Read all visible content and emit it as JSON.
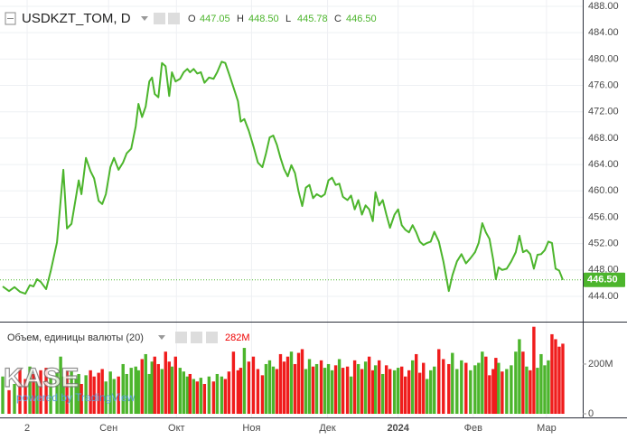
{
  "chart_data": {
    "type": "line",
    "symbol": "USDKZT_TOM, D",
    "ohlc": [
      {
        "label": "O",
        "value": "447.05"
      },
      {
        "label": "H",
        "value": "448.50"
      },
      {
        "label": "L",
        "value": "445.78"
      },
      {
        "label": "C",
        "value": "446.50"
      }
    ],
    "last_price_label": "446.50",
    "volume_title": "Объем, единицы валюты (20)",
    "volume_last_label": "282M",
    "watermark": [
      "KASE",
      "powered by TradingView"
    ],
    "x": [
      3,
      10,
      16,
      22,
      28,
      33,
      37,
      41,
      45,
      51,
      56,
      63,
      67,
      70,
      74,
      79,
      84,
      87,
      90,
      95,
      100,
      104,
      109,
      113,
      117,
      122,
      126,
      131,
      136,
      140,
      145,
      150,
      153,
      157,
      161,
      165,
      168,
      171,
      175,
      179,
      183,
      187,
      190,
      194,
      199,
      203,
      207,
      210,
      214,
      218,
      222,
      226,
      231,
      236,
      240,
      245,
      249,
      253,
      258,
      263,
      266,
      270,
      275,
      280,
      285,
      290,
      294,
      298,
      302,
      306,
      310,
      314,
      318,
      322,
      326,
      330,
      334,
      338,
      342,
      346,
      350,
      355,
      359,
      363,
      367,
      371,
      375,
      379,
      384,
      388,
      392,
      396,
      400,
      404,
      408,
      412,
      415,
      419,
      423,
      427,
      431,
      436,
      440,
      444,
      448,
      452,
      456,
      460,
      464,
      468,
      472,
      476,
      480,
      485,
      490,
      496,
      500,
      505,
      510,
      515,
      520,
      525,
      529,
      533,
      537,
      541,
      545,
      548,
      551,
      555,
      560,
      565,
      570,
      574,
      578,
      582,
      586,
      590,
      594,
      598,
      602,
      606,
      610,
      614,
      618,
      622
    ],
    "xlim": [
      0,
      644
    ],
    "xticks": [
      {
        "value": 30,
        "label": "2"
      },
      {
        "value": 120,
        "label": "Сен"
      },
      {
        "value": 195,
        "label": "Окт"
      },
      {
        "value": 278,
        "label": "Ноя"
      },
      {
        "value": 362,
        "label": "Дек"
      },
      {
        "value": 440,
        "label": "2024"
      },
      {
        "value": 523,
        "label": "Фев"
      },
      {
        "value": 604,
        "label": "Мар"
      }
    ],
    "ylim": [
      440.3,
      488.96
    ],
    "yticks": [
      {
        "value": 444,
        "label": "444.00"
      },
      {
        "value": 448,
        "label": "448.00"
      },
      {
        "value": 452,
        "label": "452.00"
      },
      {
        "value": 456,
        "label": "456.00"
      },
      {
        "value": 460,
        "label": "460.00"
      },
      {
        "value": 464,
        "label": "464.00"
      },
      {
        "value": 468,
        "label": "468.00"
      },
      {
        "value": 472,
        "label": "472.00"
      },
      {
        "value": 476,
        "label": "476.00"
      },
      {
        "value": 480,
        "label": "480.00"
      },
      {
        "value": 484,
        "label": "484.00"
      },
      {
        "value": 488,
        "label": "488.00"
      }
    ],
    "y2lim": [
      -14.5,
      367
    ],
    "y2ticks": [
      0,
      {
        "value": 200,
        "label": "200M"
      }
    ],
    "grid": true,
    "series": [
      {
        "name": "USDKZT_TOM",
        "color": "#4cb52c",
        "values": [
          445.5,
          444.8,
          445.4,
          444.7,
          444.4,
          445.7,
          445.5,
          446.6,
          446.2,
          445.1,
          447.8,
          452.2,
          458.5,
          463.2,
          454.3,
          455.0,
          459.1,
          461.6,
          459.5,
          465.0,
          463.0,
          461.9,
          458.5,
          458.0,
          459.5,
          463.6,
          465.0,
          463.2,
          464.3,
          465.7,
          466.4,
          469.8,
          473.2,
          471.2,
          472.8,
          476.6,
          477.2,
          474.7,
          474.2,
          479.4,
          478.9,
          474.4,
          478.0,
          476.6,
          477.0,
          478.0,
          478.5,
          478.0,
          478.5,
          477.8,
          478.0,
          476.4,
          477.2,
          477.0,
          478.0,
          479.6,
          479.4,
          477.8,
          475.7,
          473.6,
          470.5,
          470.9,
          469.1,
          466.8,
          464.3,
          463.6,
          465.7,
          468.1,
          468.4,
          467.0,
          465.0,
          463.3,
          462.2,
          463.9,
          462.7,
          459.9,
          457.7,
          460.5,
          460.9,
          458.9,
          459.5,
          459.1,
          459.5,
          461.6,
          462.0,
          460.9,
          461.1,
          459.1,
          458.6,
          459.3,
          457.2,
          458.6,
          456.4,
          457.8,
          457.2,
          455.4,
          459.8,
          457.8,
          458.6,
          456.4,
          454.4,
          456.4,
          457.2,
          454.8,
          454.1,
          453.7,
          454.8,
          453.7,
          452.3,
          451.8,
          452.1,
          452.3,
          453.8,
          452.3,
          449.3,
          444.8,
          447.2,
          449.3,
          450.4,
          449.0,
          449.8,
          450.7,
          452.1,
          455.1,
          453.7,
          452.7,
          449.6,
          446.6,
          448.4,
          448.0,
          448.2,
          449.3,
          450.7,
          453.2,
          450.7,
          451.0,
          450.4,
          448.2,
          450.3,
          450.4,
          451.0,
          452.3,
          452.1,
          448.2,
          447.9,
          446.5
        ]
      },
      {
        "name": "Объем",
        "axis": "y2",
        "up_color": "#4cb52c",
        "down_color": "#f01c1c",
        "values": [
          150,
          95,
          120,
          180,
          140,
          190,
          160,
          130,
          175,
          185,
          145,
          165,
          230,
          150,
          175,
          170,
          140,
          160,
          120,
          155,
          175,
          150,
          165,
          180,
          130,
          170,
          140,
          150,
          200,
          160,
          185,
          190,
          175,
          220,
          240,
          160,
          210,
          230,
          200,
          180,
          250,
          210,
          190,
          230,
          185,
          170,
          150,
          160,
          140,
          130,
          145,
          120,
          150,
          130,
          160,
          150,
          140,
          170,
          250,
          175,
          185,
          265,
          210,
          230,
          180,
          155,
          200,
          215,
          190,
          180,
          240,
          210,
          230,
          250,
          200,
          245,
          260,
          180,
          220,
          190,
          200,
          215,
          185,
          200,
          175,
          195,
          220,
          185,
          190,
          150,
          215,
          200,
          180,
          210,
          230,
          175,
          195,
          215,
          160,
          195,
          180,
          175,
          185,
          190,
          150,
          175,
          215,
          240,
          165,
          205,
          140,
          175,
          190,
          260,
          220,
          200,
          245,
          180,
          215,
          205,
          175,
          195,
          205,
          250,
          230,
          155,
          180,
          225,
          205,
          170,
          180,
          195,
          250,
          300,
          250,
          190,
          175,
          350,
          185,
          240,
          195,
          215,
          320,
          300,
          270,
          282
        ]
      }
    ]
  }
}
